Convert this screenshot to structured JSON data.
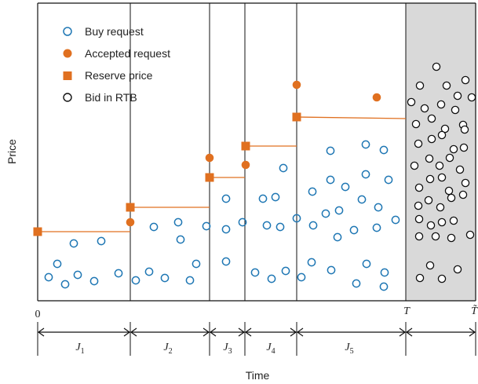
{
  "diagram": {
    "axis_labels": {
      "y": "Price",
      "x": "Time"
    },
    "axis_origin": "0",
    "time_marks": {
      "T": "T",
      "T_tilde": "T̃"
    },
    "legend": {
      "buy": "Buy request",
      "accepted": "Accepted request",
      "reserve": "Reserve price",
      "bid": "Bid in RTB"
    },
    "intervals": [
      {
        "name": "J",
        "sub": "1"
      },
      {
        "name": "J",
        "sub": "2"
      },
      {
        "name": "J",
        "sub": "3"
      },
      {
        "name": "J",
        "sub": "4"
      },
      {
        "name": "J",
        "sub": "5"
      }
    ],
    "colors": {
      "buy": "#1f77b4",
      "accepted": "#e07020",
      "reserve": "#e07020",
      "bid_stroke": "#111111",
      "rtb_region": "#d9d9d9",
      "axis": "#111111"
    }
  }
}
